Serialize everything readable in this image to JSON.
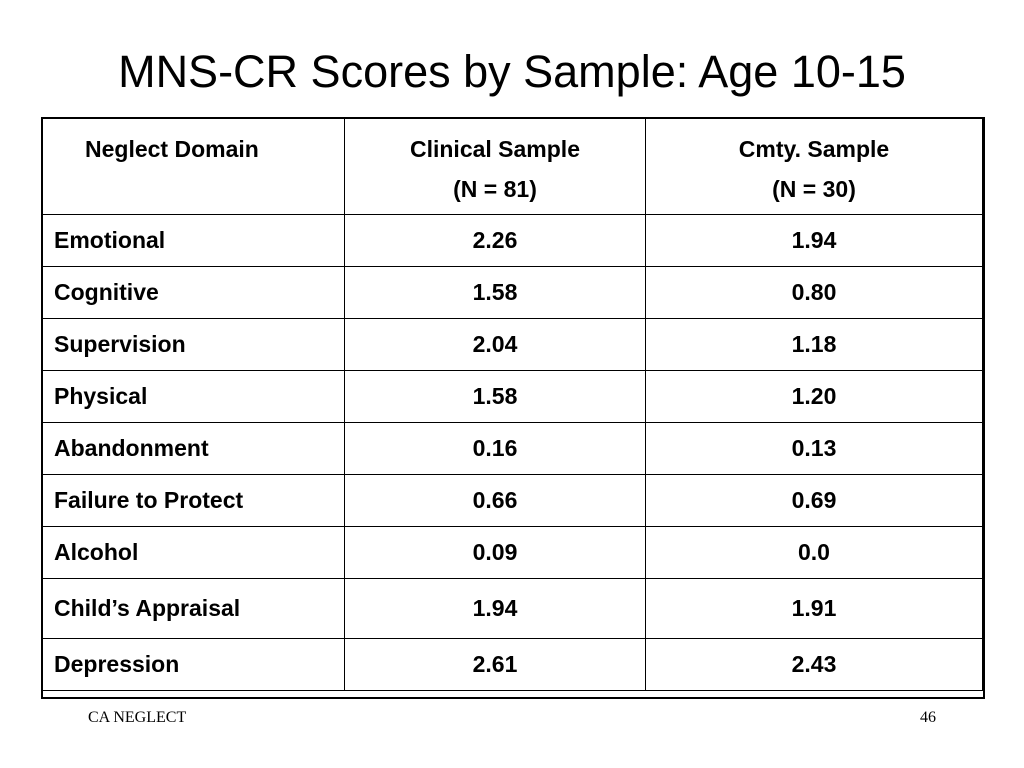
{
  "slide": {
    "title": "MNS-CR Scores by Sample: Age 10-15",
    "footer_left": "CA NEGLECT",
    "page_number": "46"
  },
  "table": {
    "headers": {
      "domain": "Neglect Domain",
      "clinical_line1": "Clinical Sample",
      "clinical_line2": "(N = 81)",
      "community_line1": "Cmty. Sample",
      "community_line2": "(N = 30)"
    },
    "rows": [
      {
        "domain": "Emotional",
        "clinical": "2.26",
        "community": "1.94"
      },
      {
        "domain": "Cognitive",
        "clinical": "1.58",
        "community": "0.80"
      },
      {
        "domain": "Supervision",
        "clinical": "2.04",
        "community": "1.18"
      },
      {
        "domain": "Physical",
        "clinical": "1.58",
        "community": "1.20"
      },
      {
        "domain": "Abandonment",
        "clinical": "0.16",
        "community": "0.13"
      },
      {
        "domain": "Failure to Protect",
        "clinical": "0.66",
        "community": "0.69"
      },
      {
        "domain": "Alcohol",
        "clinical": "0.09",
        "community": "0.0"
      },
      {
        "domain": "Child’s Appraisal",
        "clinical": "1.94",
        "community": "1.91"
      },
      {
        "domain": "Depression",
        "clinical": "2.61",
        "community": "2.43"
      }
    ]
  }
}
